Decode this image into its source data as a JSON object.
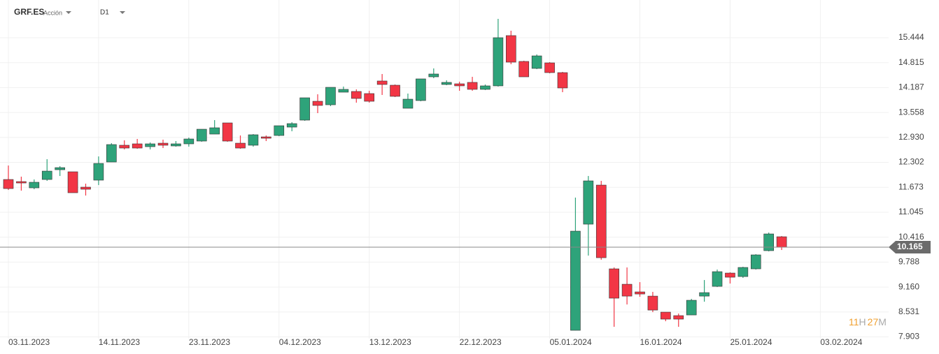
{
  "header": {
    "symbol": "GRF.ES",
    "kind": "Acción",
    "timeframe": "D1"
  },
  "countdown": {
    "hours": 11,
    "hours_unit": "H",
    "minutes": 27,
    "minutes_unit": "M"
  },
  "chart_data": {
    "type": "candlestick",
    "up_color": "#2ea37a",
    "down_color": "#f23645",
    "x": [
      0,
      1,
      2,
      3,
      4,
      5,
      6,
      7,
      8,
      9,
      10,
      11,
      12,
      13,
      14,
      15,
      16,
      17,
      18,
      19,
      20,
      21,
      22,
      23,
      24,
      25,
      26,
      27,
      28,
      29,
      30,
      31,
      32,
      33,
      34,
      35,
      36,
      37,
      38,
      39,
      40,
      41,
      42,
      43,
      44,
      45,
      46,
      47,
      48,
      49,
      50,
      51,
      52,
      53,
      54,
      55,
      56,
      57,
      58,
      59,
      60
    ],
    "open": [
      11.871,
      11.818,
      11.66,
      11.871,
      12.117,
      12.065,
      11.678,
      11.854,
      12.311,
      12.734,
      12.769,
      12.698,
      12.786,
      12.716,
      12.769,
      12.839,
      13.015,
      13.297,
      12.786,
      12.734,
      12.945,
      12.98,
      13.191,
      13.367,
      13.842,
      13.754,
      14.071,
      14.089,
      14.036,
      14.353,
      14.247,
      13.666,
      13.86,
      14.458,
      14.265,
      14.282,
      14.318,
      14.142,
      14.23,
      15.497,
      14.846,
      14.67,
      14.81,
      14.564,
      8.07,
      10.745,
      11.73,
      9.619,
      9.231,
      9.038,
      8.932,
      8.528,
      8.44,
      8.457,
      8.932,
      9.178,
      9.513,
      9.425,
      9.619,
      10.077,
      10.428
    ],
    "high": [
      12.223,
      11.942,
      11.871,
      12.382,
      12.206,
      12.065,
      11.766,
      12.452,
      12.786,
      12.857,
      12.892,
      12.804,
      12.874,
      12.839,
      12.927,
      13.138,
      13.367,
      13.297,
      12.98,
      13.015,
      12.98,
      13.226,
      13.315,
      13.93,
      14.018,
      14.194,
      14.212,
      14.142,
      14.106,
      14.529,
      14.265,
      14.036,
      14.406,
      14.67,
      14.37,
      14.335,
      14.458,
      14.265,
      15.919,
      15.62,
      14.863,
      15.022,
      14.828,
      14.582,
      11.414,
      11.959,
      11.836,
      9.654,
      9.654,
      9.284,
      9.038,
      8.528,
      8.492,
      8.862,
      9.337,
      9.601,
      9.531,
      9.671,
      9.988,
      10.534,
      10.446
    ],
    "low": [
      11.607,
      11.59,
      11.625,
      11.836,
      11.959,
      11.537,
      11.466,
      11.73,
      12.311,
      12.628,
      12.646,
      12.628,
      12.663,
      12.698,
      12.698,
      12.822,
      13.015,
      12.822,
      12.646,
      12.698,
      12.839,
      12.962,
      13.086,
      13.35,
      13.543,
      13.719,
      14.071,
      13.807,
      13.807,
      14.001,
      13.948,
      13.666,
      13.842,
      14.423,
      14.247,
      14.106,
      14.106,
      14.124,
      14.212,
      14.775,
      14.458,
      14.652,
      14.546,
      14.071,
      8.07,
      9.953,
      9.848,
      8.158,
      8.721,
      8.915,
      8.528,
      8.299,
      8.158,
      8.457,
      8.791,
      9.161,
      9.249,
      9.39,
      9.601,
      10.059,
      10.094
    ],
    "close": [
      11.642,
      11.783,
      11.801,
      12.082,
      12.17,
      11.537,
      11.625,
      12.276,
      12.751,
      12.663,
      12.663,
      12.769,
      12.734,
      12.769,
      12.892,
      13.138,
      13.174,
      12.839,
      12.663,
      12.998,
      12.91,
      13.226,
      13.279,
      13.93,
      13.737,
      14.194,
      14.142,
      13.913,
      13.842,
      14.265,
      13.966,
      13.895,
      14.406,
      14.529,
      14.318,
      14.23,
      14.142,
      14.23,
      15.444,
      14.828,
      14.458,
      14.986,
      14.564,
      14.177,
      10.569,
      11.836,
      9.9,
      8.88,
      8.932,
      8.985,
      8.58,
      8.352,
      8.352,
      8.827,
      9.02,
      9.548,
      9.408,
      9.654,
      9.971,
      10.499,
      10.165
    ],
    "last_price": 10.165,
    "xlim": [
      -0.65,
      68.3
    ],
    "xticks": [
      {
        "value": 0,
        "label": "03.11.2023"
      },
      {
        "value": 7,
        "label": "14.11.2023"
      },
      {
        "value": 14,
        "label": "23.11.2023"
      },
      {
        "value": 21,
        "label": "04.12.2023"
      },
      {
        "value": 28,
        "label": "13.12.2023"
      },
      {
        "value": 35,
        "label": "22.12.2023"
      },
      {
        "value": 42,
        "label": "05.01.2024"
      },
      {
        "value": 49,
        "label": "16.01.2024"
      },
      {
        "value": 56,
        "label": "25.01.2024"
      },
      {
        "value": 63,
        "label": "03.02.2024"
      }
    ],
    "ylim": [
      7.86,
      16.394
    ],
    "yticks": [
      15.444,
      14.815,
      14.187,
      13.558,
      {
        "value": 12.93,
        "label": "12.930"
      },
      12.302,
      11.673,
      11.045,
      10.416,
      9.788,
      {
        "value": 9.16,
        "label": "9.160"
      },
      8.531,
      7.903
    ],
    "grid": true
  }
}
